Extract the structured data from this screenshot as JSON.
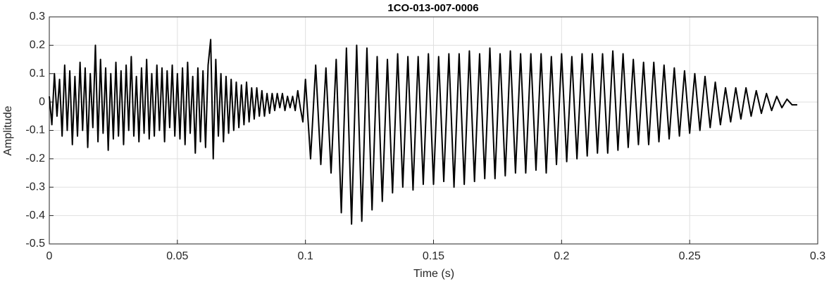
{
  "chart_data": {
    "type": "line",
    "title": "1CO-013-007-0006",
    "x_label": "Time (s)",
    "y_label": "Amplitude",
    "xlim": [
      0,
      0.3
    ],
    "ylim": [
      -0.5,
      0.3
    ],
    "xticks": [
      0,
      0.05,
      0.1,
      0.15,
      0.2,
      0.25,
      0.3
    ],
    "yticks": [
      -0.5,
      -0.4,
      -0.3,
      -0.2,
      -0.1,
      0,
      0.1,
      0.2,
      0.3
    ],
    "grid": true,
    "series": [
      {
        "name": null,
        "color": "#000000",
        "x": [
          0,
          0.001,
          0.002,
          0.003,
          0.004,
          0.005,
          0.006,
          0.007,
          0.008,
          0.009,
          0.01,
          0.011,
          0.012,
          0.013,
          0.014,
          0.015,
          0.016,
          0.017,
          0.018,
          0.019,
          0.02,
          0.021,
          0.022,
          0.023,
          0.024,
          0.025,
          0.026,
          0.027,
          0.028,
          0.029,
          0.03,
          0.031,
          0.032,
          0.033,
          0.034,
          0.035,
          0.036,
          0.037,
          0.038,
          0.039,
          0.04,
          0.041,
          0.042,
          0.043,
          0.044,
          0.045,
          0.046,
          0.047,
          0.048,
          0.049,
          0.05,
          0.051,
          0.052,
          0.053,
          0.054,
          0.055,
          0.056,
          0.057,
          0.058,
          0.059,
          0.06,
          0.061,
          0.062,
          0.063,
          0.064,
          0.065,
          0.066,
          0.067,
          0.068,
          0.069,
          0.07,
          0.071,
          0.072,
          0.073,
          0.074,
          0.075,
          0.076,
          0.077,
          0.078,
          0.079,
          0.08,
          0.081,
          0.082,
          0.083,
          0.084,
          0.085,
          0.086,
          0.087,
          0.088,
          0.089,
          0.09,
          0.091,
          0.092,
          0.093,
          0.094,
          0.095,
          0.096,
          0.097,
          0.098,
          0.099,
          0.1,
          0.102,
          0.104,
          0.106,
          0.108,
          0.11,
          0.112,
          0.114,
          0.116,
          0.118,
          0.12,
          0.122,
          0.124,
          0.126,
          0.128,
          0.13,
          0.132,
          0.134,
          0.136,
          0.138,
          0.14,
          0.142,
          0.144,
          0.146,
          0.148,
          0.15,
          0.152,
          0.154,
          0.156,
          0.158,
          0.16,
          0.162,
          0.164,
          0.166,
          0.168,
          0.17,
          0.172,
          0.174,
          0.176,
          0.178,
          0.18,
          0.182,
          0.184,
          0.186,
          0.188,
          0.19,
          0.192,
          0.194,
          0.196,
          0.198,
          0.2,
          0.202,
          0.204,
          0.206,
          0.208,
          0.21,
          0.212,
          0.214,
          0.216,
          0.218,
          0.22,
          0.222,
          0.224,
          0.226,
          0.228,
          0.23,
          0.232,
          0.234,
          0.236,
          0.238,
          0.24,
          0.242,
          0.244,
          0.246,
          0.248,
          0.25,
          0.252,
          0.254,
          0.256,
          0.258,
          0.26,
          0.262,
          0.264,
          0.266,
          0.268,
          0.27,
          0.272,
          0.274,
          0.276,
          0.278,
          0.28,
          0.282,
          0.284,
          0.286,
          0.288,
          0.29,
          0.292
        ],
        "values": [
          0.02,
          -0.08,
          0.1,
          -0.05,
          0.08,
          -0.12,
          0.13,
          -0.1,
          0.11,
          -0.15,
          0.09,
          -0.12,
          0.14,
          -0.1,
          0.12,
          -0.16,
          0.1,
          -0.09,
          0.2,
          -0.14,
          0.15,
          -0.11,
          0.12,
          -0.17,
          0.1,
          -0.13,
          0.14,
          -0.12,
          0.11,
          -0.15,
          0.13,
          -0.1,
          0.16,
          -0.12,
          0.09,
          -0.14,
          0.12,
          -0.11,
          0.15,
          -0.13,
          0.1,
          -0.12,
          0.13,
          -0.1,
          0.12,
          -0.14,
          0.11,
          -0.09,
          0.13,
          -0.12,
          0.1,
          -0.13,
          0.12,
          -0.15,
          0.14,
          -0.11,
          0.09,
          -0.18,
          0.12,
          -0.14,
          0.11,
          -0.16,
          0.13,
          0.22,
          -0.2,
          0.15,
          -0.12,
          0.1,
          -0.14,
          0.09,
          -0.11,
          0.08,
          -0.1,
          0.07,
          -0.09,
          0.06,
          -0.08,
          0.07,
          -0.07,
          0.05,
          -0.06,
          0.05,
          -0.05,
          0.04,
          -0.05,
          0.03,
          -0.04,
          0.03,
          -0.03,
          0.03,
          -0.02,
          0.03,
          -0.03,
          0.02,
          -0.02,
          0.02,
          -0.03,
          0.04,
          -0.02,
          -0.07,
          0.08,
          -0.2,
          0.13,
          -0.22,
          0.12,
          -0.25,
          0.15,
          -0.39,
          0.19,
          -0.43,
          0.2,
          -0.42,
          0.19,
          -0.38,
          0.16,
          -0.35,
          0.15,
          -0.32,
          0.17,
          -0.3,
          0.16,
          -0.31,
          0.16,
          -0.29,
          0.17,
          -0.29,
          0.16,
          -0.28,
          0.17,
          -0.3,
          0.17,
          -0.29,
          0.18,
          -0.28,
          0.17,
          -0.27,
          0.19,
          -0.27,
          0.17,
          -0.26,
          0.18,
          -0.25,
          0.17,
          -0.25,
          0.17,
          -0.24,
          0.17,
          -0.25,
          0.16,
          -0.22,
          0.17,
          -0.21,
          0.16,
          -0.2,
          0.17,
          -0.19,
          0.17,
          -0.18,
          0.17,
          -0.18,
          0.18,
          -0.17,
          0.17,
          -0.16,
          0.15,
          -0.15,
          0.14,
          -0.15,
          0.14,
          -0.14,
          0.13,
          -0.13,
          0.12,
          -0.12,
          0.11,
          -0.11,
          0.1,
          -0.1,
          0.09,
          -0.09,
          0.07,
          -0.08,
          0.05,
          -0.07,
          0.05,
          -0.06,
          0.05,
          -0.05,
          0.04,
          -0.04,
          0.03,
          -0.03,
          0.02,
          -0.02,
          0.01,
          -0.01,
          -0.01
        ]
      }
    ]
  }
}
